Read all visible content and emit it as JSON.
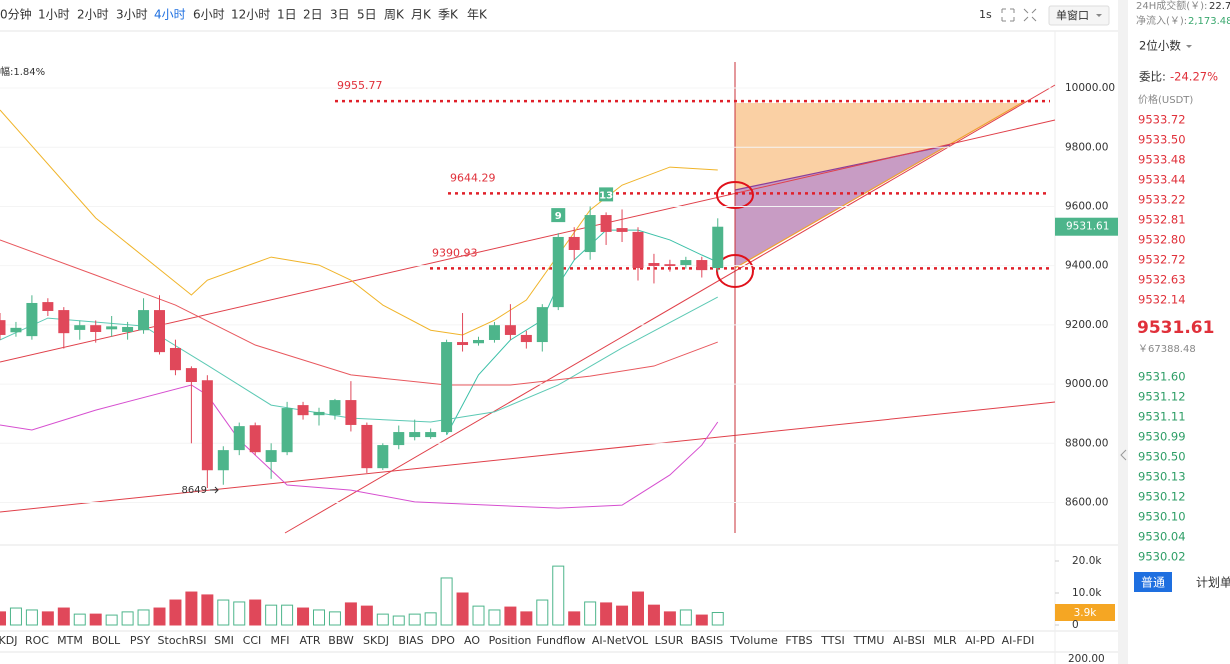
{
  "toolbar": {
    "intervals": [
      "0分钟",
      "1小时",
      "2小时",
      "3小时",
      "4小时",
      "6小时",
      "12小时",
      "1日",
      "2日",
      "3日",
      "5日",
      "周K",
      "月K",
      "季K",
      "年K"
    ],
    "refresh": "1s",
    "window_mode": "单窗口"
  },
  "chart_data": {
    "type": "candlestick",
    "amplitude_label": "幅:1.84%",
    "up_color": "#4db58b",
    "down_color": "#e0485a",
    "open": [
      9216,
      9175,
      9162,
      9277,
      9250,
      9183,
      9199,
      9185,
      9176,
      9182,
      9250,
      9122,
      9054,
      9013,
      8709,
      8777,
      8861,
      8737,
      8770,
      8929,
      8895,
      8895,
      8946,
      8862,
      8716,
      8794,
      8821,
      8821,
      8838,
      9142,
      9138,
      9149,
      9199,
      9166,
      9142,
      9260,
      9497,
      9446,
      9571,
      9527,
      9514,
      9409,
      9405,
      9402,
      9419,
      9392
    ],
    "high": [
      9240,
      9210,
      9300,
      9290,
      9260,
      9215,
      9215,
      9230,
      9210,
      9290,
      9300,
      9150,
      9060,
      9030,
      8790,
      8870,
      8870,
      8800,
      8940,
      8940,
      8920,
      8950,
      9010,
      8870,
      8800,
      8860,
      8880,
      8850,
      9150,
      9240,
      9160,
      9210,
      9270,
      9180,
      9270,
      9510,
      9530,
      9600,
      9580,
      9590,
      9530,
      9440,
      9420,
      9430,
      9430,
      9560
    ],
    "low": [
      9150,
      9160,
      9150,
      9230,
      9120,
      9150,
      9140,
      9160,
      9150,
      9170,
      9100,
      9030,
      8800,
      8649,
      8660,
      8760,
      8760,
      8680,
      8760,
      8880,
      8860,
      8880,
      8840,
      8700,
      8710,
      8780,
      8810,
      8815,
      8830,
      9110,
      9130,
      9140,
      9150,
      9120,
      9110,
      9250,
      9420,
      9420,
      9470,
      9480,
      9350,
      9340,
      9380,
      9390,
      9360,
      9380
    ],
    "close": [
      9166,
      9190,
      9274,
      9247,
      9172,
      9199,
      9176,
      9195,
      9193,
      9250,
      9108,
      9047,
      9007,
      8709,
      8777,
      8858,
      8770,
      8777,
      8919,
      8895,
      8906,
      8946,
      8862,
      8716,
      8794,
      8838,
      8838,
      8838,
      9142,
      9132,
      9149,
      9199,
      9166,
      9142,
      9260,
      9497,
      9453,
      9571,
      9514,
      9514,
      9392,
      9399,
      9399,
      9419,
      9385,
      9531.61
    ],
    "td_labels": [
      null,
      null,
      null,
      null,
      null,
      null,
      null,
      null,
      null,
      null,
      null,
      null,
      null,
      null,
      null,
      null,
      null,
      null,
      null,
      null,
      null,
      null,
      null,
      null,
      null,
      null,
      null,
      null,
      null,
      null,
      null,
      null,
      null,
      null,
      null,
      "9",
      null,
      null,
      "13",
      null,
      null,
      null,
      null,
      null,
      null,
      null
    ],
    "overlays": [
      {
        "color": "#f0b429",
        "x": [
          0,
          6,
          12,
          13,
          17,
          20,
          22,
          24,
          27,
          29,
          31,
          33,
          35,
          37,
          39,
          42,
          45
        ],
        "values": [
          9926,
          9561,
          9301,
          9351,
          9429,
          9402,
          9351,
          9267,
          9182,
          9166,
          9216,
          9284,
          9436,
          9588,
          9672,
          9733,
          9723
        ]
      },
      {
        "color": "#3cc0a8",
        "x": [
          28,
          30,
          32,
          34,
          35,
          36,
          38,
          40,
          42,
          44,
          45
        ],
        "values": [
          8828,
          9031,
          9149,
          9216,
          9335,
          9419,
          9520,
          9520,
          9487,
          9436,
          9412
        ]
      },
      {
        "color": "#5cc9b4",
        "x": [
          0,
          3,
          9,
          13,
          17,
          22,
          27,
          31,
          35,
          39,
          45
        ],
        "values": [
          9149,
          9223,
          9196,
          9064,
          8929,
          8885,
          8872,
          8906,
          8997,
          9122,
          9294
        ]
      },
      {
        "color": "#e8585e",
        "x": [
          0,
          6,
          11,
          16,
          22,
          28,
          32,
          37,
          41,
          45
        ],
        "values": [
          9487,
          9368,
          9267,
          9132,
          9031,
          8997,
          8997,
          9027,
          9061,
          9142
        ]
      },
      {
        "color": "#d64fd0",
        "x": [
          0,
          2,
          6,
          12,
          13,
          15,
          18,
          22,
          26,
          35,
          39,
          42,
          44,
          45
        ],
        "values": [
          8862,
          8845,
          8912,
          8997,
          8963,
          8811,
          8659,
          8642,
          8602,
          8581,
          8591,
          8693,
          8794,
          8872
        ]
      }
    ],
    "price_levels": [
      9955.77,
      9644.29,
      9390.93
    ],
    "ylim": [
      8497,
      10088
    ],
    "yticks": [
      {
        "value": 10000,
        "label": "10000.00"
      },
      {
        "value": 9800,
        "label": "9800.00"
      },
      {
        "value": 9600,
        "label": "9600.00"
      },
      {
        "value": 9400,
        "label": "9400.00"
      },
      {
        "value": 9200,
        "label": "9200.00"
      },
      {
        "value": 9000,
        "label": "9000.00"
      },
      {
        "value": 8800,
        "label": "8800.00"
      },
      {
        "value": 8600,
        "label": "8600.00"
      }
    ],
    "volume": [
      4100,
      5300,
      4700,
      4100,
      5300,
      3400,
      3400,
      3100,
      4100,
      4700,
      5300,
      7800,
      10300,
      9400,
      7800,
      7200,
      7800,
      6200,
      6200,
      5300,
      4700,
      4100,
      6900,
      5900,
      3400,
      2800,
      3400,
      3800,
      14700,
      10000,
      5900,
      4700,
      5600,
      4100,
      7800,
      18400,
      4100,
      7200,
      6900,
      5900,
      10300,
      6200,
      4100,
      4700,
      3100,
      3900
    ],
    "volume_value_labels": [
      null,
      null,
      null,
      null,
      null,
      null,
      null,
      null,
      null,
      null,
      null,
      null,
      null,
      null,
      null,
      null,
      null,
      null,
      null,
      null,
      null,
      null,
      null,
      null,
      null,
      null,
      null,
      null,
      null,
      null,
      null,
      null,
      null,
      null,
      null,
      null,
      null,
      null,
      null,
      null,
      null,
      null,
      null,
      null,
      null,
      "3.9k"
    ],
    "volume_ylim": [
      0,
      25000
    ],
    "volume_yticks": [
      {
        "value": 20000,
        "label": "20.0k"
      },
      {
        "value": 10000,
        "label": "10.0k"
      },
      0
    ],
    "lower_panel_tick": "200.00"
  },
  "order_book": {
    "turnover_label": "24H成交额(￥):",
    "turnover_value": "22.7",
    "inflow_label": "净流入(￥):",
    "inflow_value": "2,173.48",
    "precision": "2位小数",
    "ratio_label": "委比:",
    "ratio_value": "-24.27%",
    "price_header": "价格(USDT)",
    "asks": [
      "9533.72",
      "9533.50",
      "9533.48",
      "9533.44",
      "9533.22",
      "9532.81",
      "9532.80",
      "9532.72",
      "9532.63",
      "9532.14"
    ],
    "last_price": "9531.61",
    "last_price_cny": "￥67388.48",
    "bids": [
      "9531.60",
      "9531.12",
      "9531.11",
      "9530.99",
      "9530.50",
      "9530.13",
      "9530.12",
      "9530.10",
      "9530.04",
      "9530.02"
    ],
    "order_tabs": [
      "普通",
      "计划单"
    ]
  },
  "indicator_tabs": [
    "KDJ",
    "ROC",
    "MTM",
    "BOLL",
    "PSY",
    "StochRSI",
    "SMI",
    "CCI",
    "MFI",
    "ATR",
    "BBW",
    "SKDJ",
    "BIAS",
    "DPO",
    "AO",
    "Position",
    "Fundflow",
    "AI-NetVOL",
    "LSUR",
    "BASIS",
    "TVolume",
    "FTBS",
    "TTSI",
    "TTMU",
    "AI-BSI",
    "MLR",
    "AI-PD",
    "AI-FDI"
  ]
}
